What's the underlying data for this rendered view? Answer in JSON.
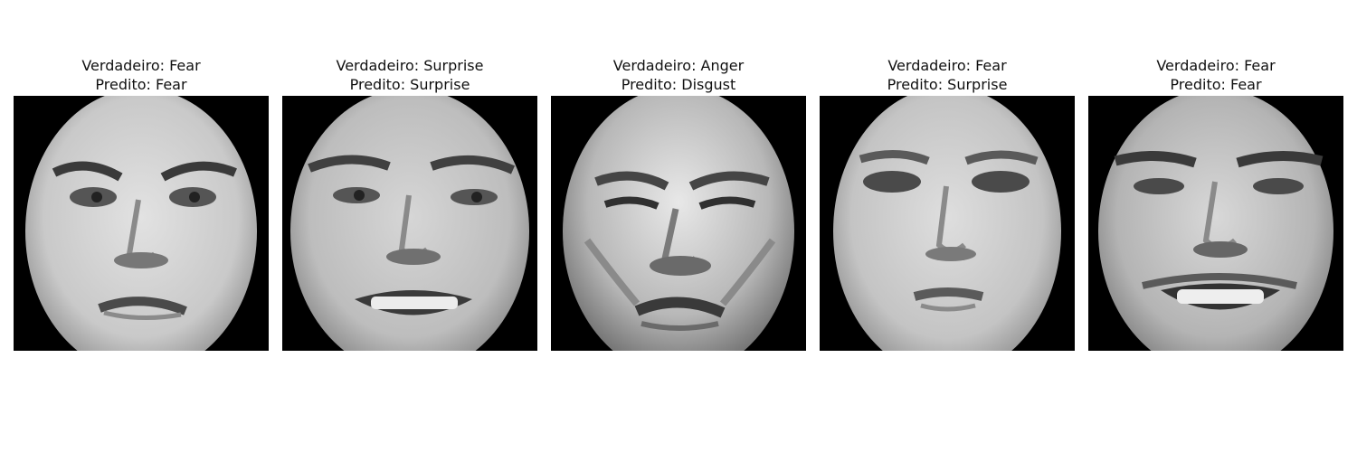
{
  "figure": {
    "background": "#ffffff",
    "panels": [
      {
        "true_label": "Verdadeiro: Fear",
        "predicted_label": "Predito: Fear",
        "image": "grayscale-face-fear-1"
      },
      {
        "true_label": "Verdadeiro: Surprise",
        "predicted_label": "Predito: Surprise",
        "image": "grayscale-face-surprise-smile"
      },
      {
        "true_label": "Verdadeiro: Anger",
        "predicted_label": "Predito: Disgust",
        "image": "grayscale-face-anger-grimace"
      },
      {
        "true_label": "Verdadeiro: Fear",
        "predicted_label": "Predito: Surprise",
        "image": "grayscale-face-fear-2"
      },
      {
        "true_label": "Verdadeiro: Fear",
        "predicted_label": "Predito: Fear",
        "image": "grayscale-face-smile"
      }
    ]
  }
}
